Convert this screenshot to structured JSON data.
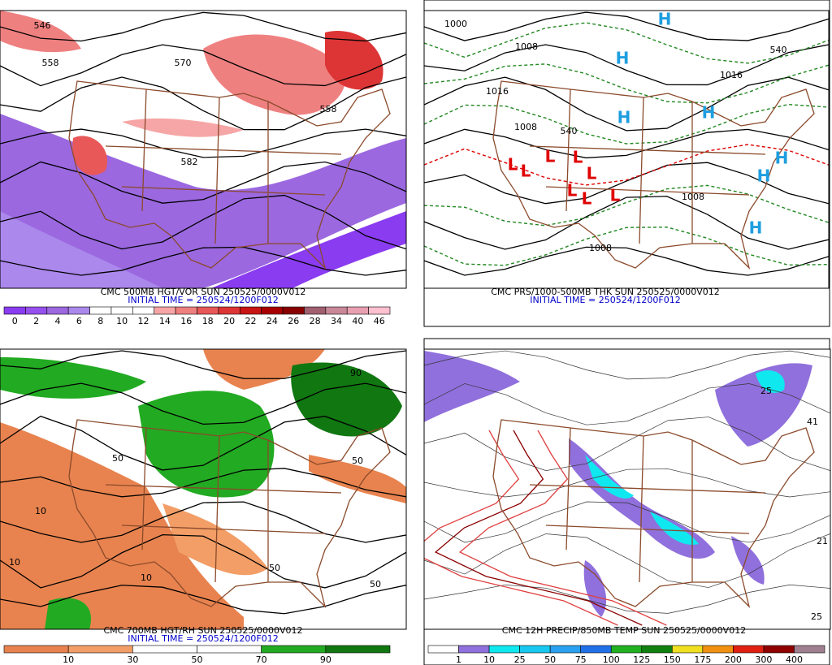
{
  "panels": [
    {
      "title": "CMC 500MB HGT/VOR SUN 250525/0000V012",
      "initial_time": "INITIAL TIME = 250524/1200F012",
      "colorbar": {
        "labels": [
          0,
          2,
          4,
          6,
          8,
          10,
          12,
          14,
          16,
          18,
          20,
          22,
          24,
          26,
          28,
          34,
          40,
          46
        ],
        "colors": [
          "#8a3cf0",
          "#9650ee",
          "#9b68e0",
          "#ab88ec",
          "#ffffff",
          "#ffffff",
          "#ffffff",
          "#f6a6a6",
          "#ef8080",
          "#e85858",
          "#dd3535",
          "#c81414",
          "#a80000",
          "#880000",
          "#a06070",
          "#c88898",
          "#e8a0b0",
          "#ffc0d0"
        ]
      },
      "map_labels": [
        "546",
        "558",
        "570",
        "582",
        "558"
      ]
    },
    {
      "title": "CMC PRS/1000-500MB THK SUN 250525/0000V012",
      "initial_time": "INITIAL TIME = 250524/1200F012",
      "map_labels": [
        "1000",
        "1008",
        "1016",
        "1008",
        "540",
        "1016",
        "1008",
        "1008",
        "540",
        "H",
        "H",
        "H",
        "H",
        "H",
        "H",
        "H",
        "L",
        "L",
        "L",
        "L",
        "L",
        "L",
        "L",
        "L"
      ]
    },
    {
      "title": "CMC 700MB HGT/RH SUN 250525/0000V012",
      "initial_time": "INITIAL TIME = 250524/1200F012",
      "colorbar": {
        "labels": [
          10,
          30,
          50,
          70,
          90
        ],
        "colors": [
          "#e8834f",
          "#f29e66",
          "#ffffff",
          "#ffffff",
          "#22aa22",
          "#117711"
        ]
      },
      "map_labels": [
        "10",
        "10",
        "10",
        "50",
        "50",
        "50",
        "50",
        "90"
      ]
    },
    {
      "title": "CMC 12H PRECIP/850MB TEMP SUN 250525/0000V012",
      "colorbar": {
        "labels": [
          1,
          10,
          25,
          50,
          75,
          100,
          125,
          150,
          175,
          200,
          300,
          400
        ],
        "colors": [
          "#ffffff",
          "#9070dc",
          "#10e8f0",
          "#18c8f0",
          "#2aa0f0",
          "#2070e8",
          "#20b020",
          "#108010",
          "#f0e020",
          "#f09010",
          "#e02010",
          "#900000",
          "#a08090"
        ]
      },
      "map_labels": [
        "25",
        "41",
        "21",
        "25"
      ]
    }
  ]
}
